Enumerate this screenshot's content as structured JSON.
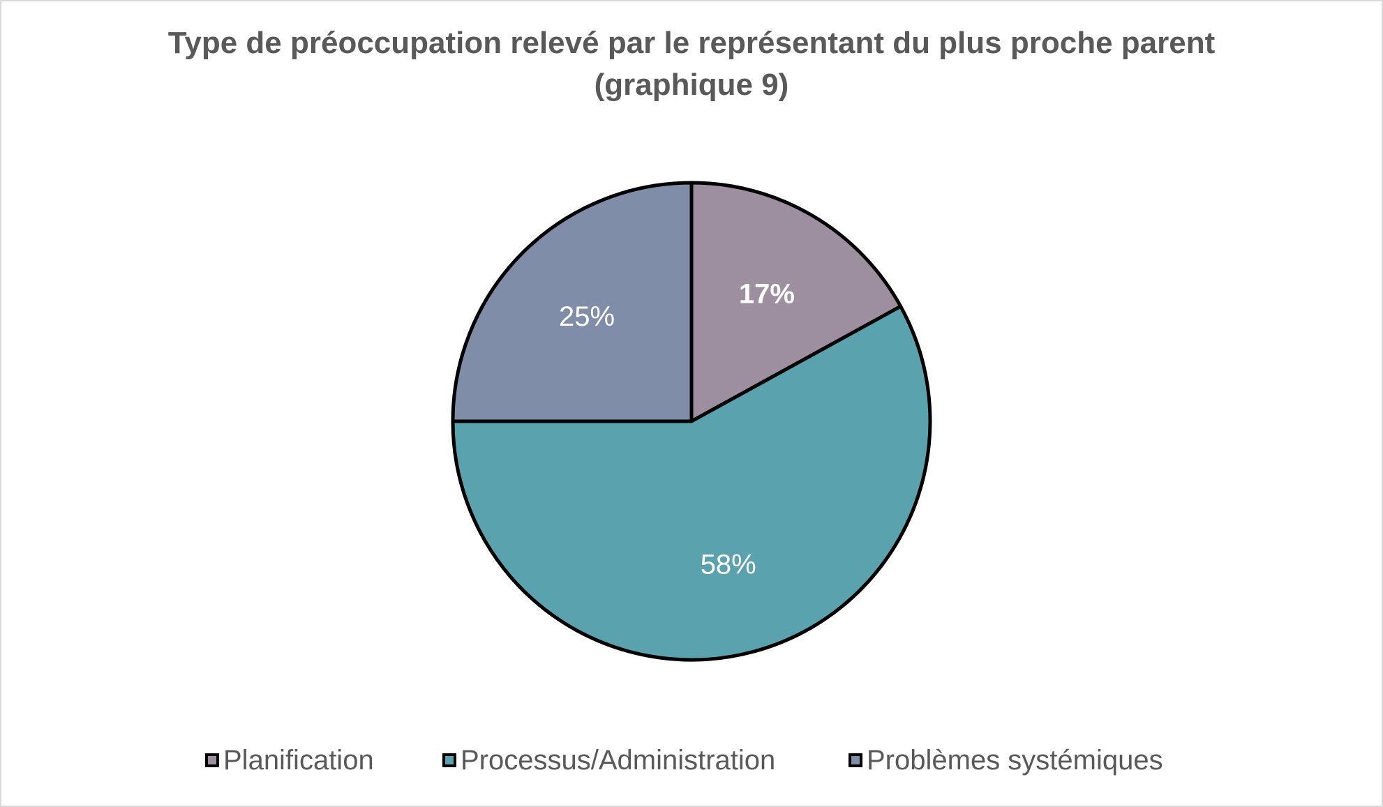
{
  "chart_data": {
    "type": "pie",
    "title": "Type de préoccupation relevé par le représentant du plus proche parent (graphique 9)",
    "categories": [
      "Planification",
      "Processus/Administration",
      "Problèmes systémiques"
    ],
    "values": [
      17,
      58,
      25
    ],
    "data_labels": [
      "17%",
      "58%",
      "25%"
    ],
    "colors": [
      "#9e8fa0",
      "#5aa3ae",
      "#7f8da8"
    ],
    "label_styles": [
      "bold",
      "normal",
      "normal"
    ],
    "start_angle": "12 o'clock",
    "direction": "clockwise",
    "legend_position": "bottom"
  }
}
